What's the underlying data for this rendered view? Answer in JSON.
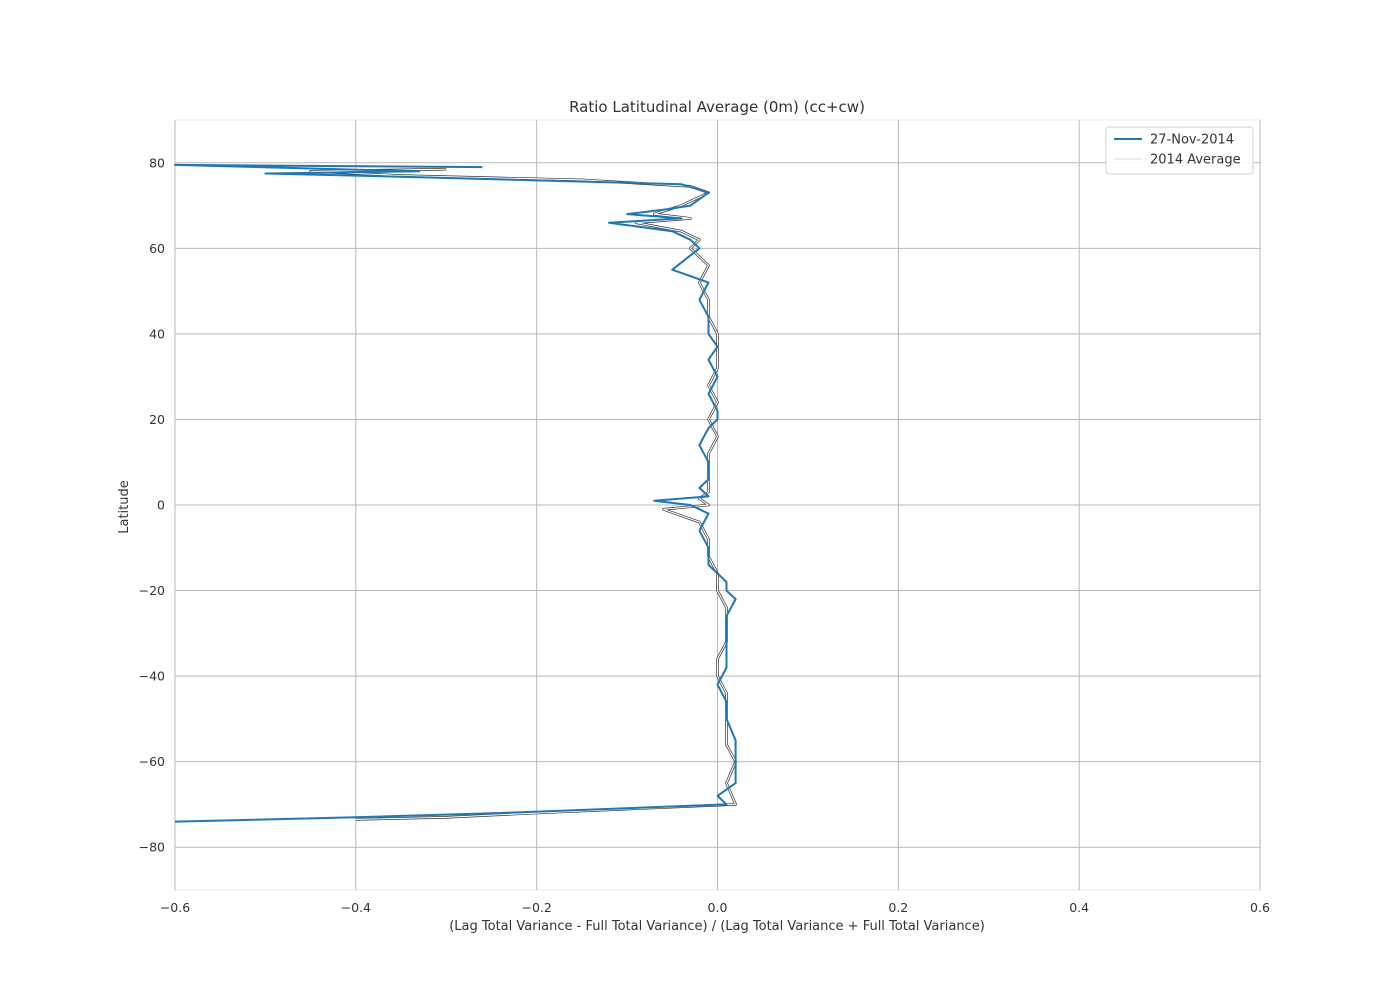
{
  "chart_data": {
    "type": "line",
    "title": "Ratio Latitudinal Average (0m) (cc+cw)",
    "xlabel": "(Lag Total Variance - Full Total Variance) / (Lag Total Variance + Full Total Variance)",
    "ylabel": "Latitude",
    "xlim": [
      -0.6,
      0.6
    ],
    "ylim": [
      -90,
      90
    ],
    "xticks": [
      -0.6,
      -0.4,
      -0.2,
      0.0,
      0.2,
      0.4,
      0.6
    ],
    "xtick_labels": [
      "−0.6",
      "−0.4",
      "−0.2",
      "0.0",
      "0.2",
      "0.4",
      "0.6"
    ],
    "yticks": [
      80,
      60,
      40,
      20,
      0,
      -20,
      -40,
      -60,
      -80
    ],
    "ytick_labels": [
      "80",
      "60",
      "40",
      "20",
      "0",
      "−20",
      "−40",
      "−60",
      "−80"
    ],
    "grid": true,
    "legend_position": "top-right",
    "colors": {
      "series_current": "#1f77b4",
      "series_average": "#ffffff",
      "series_average_edge": "#333333"
    },
    "series": [
      {
        "name": "27-Nov-2014",
        "x": [
          -0.26,
          -0.6,
          -0.33,
          -0.5,
          -0.4,
          -0.04,
          -0.01,
          -0.03,
          -0.06,
          -0.1,
          -0.04,
          -0.12,
          -0.05,
          -0.03,
          -0.02,
          -0.05,
          -0.01,
          -0.02,
          -0.01,
          -0.01,
          0.0,
          -0.01,
          0.0,
          -0.01,
          0.0,
          0.0,
          -0.01,
          -0.02,
          -0.01,
          -0.01,
          -0.02,
          -0.01,
          -0.07,
          -0.03,
          -0.01,
          -0.02,
          -0.01,
          -0.01,
          0.01,
          0.01,
          0.02,
          0.01,
          0.01,
          0.01,
          0.01,
          0.0,
          0.01,
          0.01,
          0.02,
          0.02,
          0.02,
          0.0,
          0.01,
          -0.24,
          -0.4,
          -0.6
        ],
        "y": [
          79,
          79.5,
          78,
          77.5,
          77,
          75,
          73,
          70,
          69,
          68,
          67,
          66,
          64,
          62,
          60,
          55,
          52,
          48,
          44,
          40,
          37,
          34,
          30,
          26,
          22,
          20,
          18,
          14,
          10,
          6,
          4,
          2,
          1,
          0,
          -2,
          -6,
          -10,
          -14,
          -18,
          -20,
          -22,
          -26,
          -30,
          -34,
          -38,
          -42,
          -46,
          -50,
          -55,
          -60,
          -65,
          -68,
          -70,
          -72,
          -73,
          -74
        ]
      },
      {
        "name": "2014 Average",
        "x": [
          -0.3,
          -0.45,
          -0.35,
          -0.15,
          -0.03,
          -0.01,
          -0.04,
          -0.07,
          -0.03,
          -0.09,
          -0.04,
          -0.02,
          -0.03,
          -0.01,
          -0.02,
          -0.01,
          -0.01,
          0.0,
          0.0,
          0.0,
          -0.01,
          0.0,
          -0.01,
          0.0,
          -0.01,
          -0.01,
          -0.01,
          -0.01,
          -0.02,
          -0.01,
          -0.06,
          -0.02,
          -0.01,
          -0.01,
          0.0,
          0.0,
          0.01,
          0.01,
          0.01,
          0.0,
          0.0,
          0.01,
          0.01,
          0.01,
          0.01,
          0.02,
          0.01,
          0.02,
          -0.2,
          -0.3,
          -0.4
        ],
        "y": [
          78.5,
          78,
          77,
          76,
          74.5,
          73,
          70,
          68,
          67,
          66,
          64,
          62,
          60,
          56,
          52,
          48,
          44,
          40,
          36,
          32,
          28,
          24,
          20,
          16,
          12,
          8,
          5,
          3,
          1.5,
          0,
          -1,
          -4,
          -8,
          -12,
          -16,
          -20,
          -24,
          -28,
          -32,
          -36,
          -40,
          -44,
          -48,
          -52,
          -56,
          -60,
          -65,
          -70,
          -72,
          -73,
          -73.5
        ]
      }
    ]
  }
}
